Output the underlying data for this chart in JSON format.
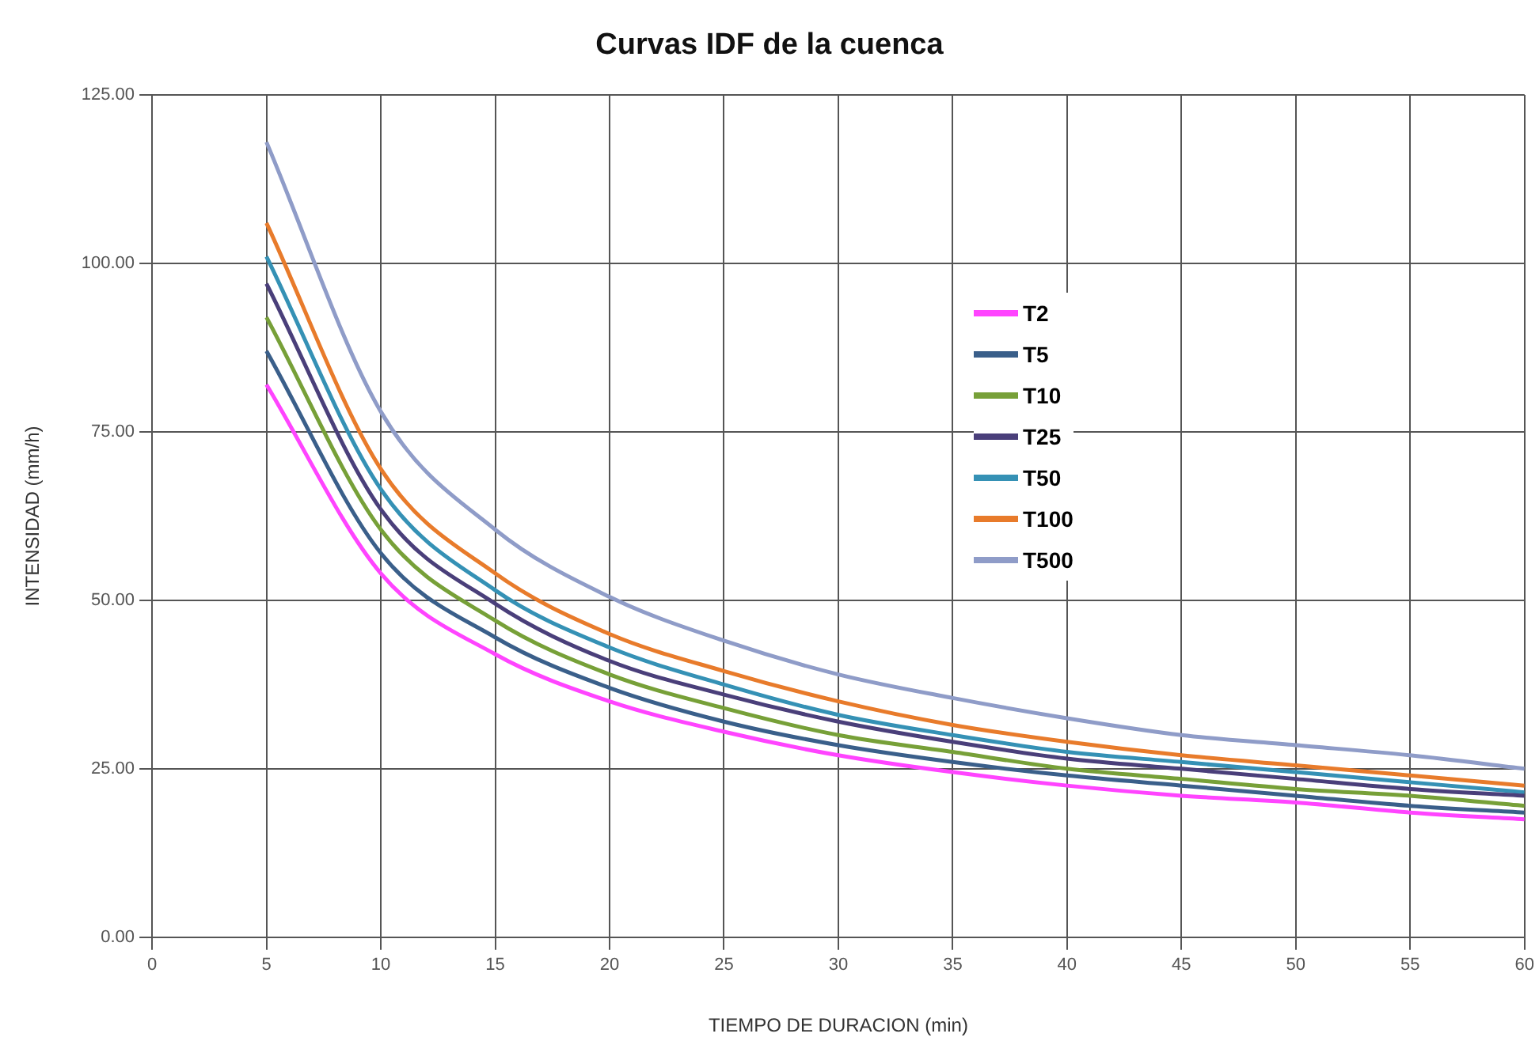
{
  "chart_data": {
    "type": "line",
    "title": "Curvas IDF de la cuenca",
    "xlabel": "TIEMPO DE DURACION (min)",
    "ylabel": "INTENSIDAD (mm/h)",
    "x": [
      5,
      10,
      15,
      20,
      25,
      30,
      35,
      40,
      45,
      50,
      55,
      60
    ],
    "xlim": [
      0,
      60
    ],
    "xticks": [
      0,
      5,
      10,
      15,
      20,
      25,
      30,
      35,
      40,
      45,
      50,
      55,
      60
    ],
    "ylim": [
      0,
      125
    ],
    "yticks": [
      {
        "value": 0,
        "label": "0.00"
      },
      {
        "value": 25,
        "label": "25.00"
      },
      {
        "value": 50,
        "label": "50.00"
      },
      {
        "value": 75,
        "label": "75.00"
      },
      {
        "value": 100,
        "label": "100.00"
      },
      {
        "value": 125,
        "label": "125.00"
      }
    ],
    "grid": true,
    "legend": "right",
    "marker": "none",
    "line_style": "solid",
    "series": [
      {
        "name": "T2",
        "color": "#ff44ff",
        "values": [
          82,
          54,
          42,
          35,
          30.5,
          27,
          24.5,
          22.5,
          21,
          20,
          18.5,
          17.5
        ]
      },
      {
        "name": "T5",
        "color": "#3a5f8a",
        "values": [
          87,
          57,
          44.5,
          37,
          32,
          28.5,
          26,
          24,
          22.5,
          21,
          19.5,
          18.5
        ]
      },
      {
        "name": "T10",
        "color": "#77a038",
        "values": [
          92,
          60.5,
          47,
          39,
          34,
          30,
          27.5,
          25,
          23.5,
          22,
          21,
          19.5
        ]
      },
      {
        "name": "T25",
        "color": "#4a3f7a",
        "values": [
          97,
          63.5,
          49.5,
          41,
          36,
          32,
          29,
          26.5,
          25,
          23.5,
          22,
          21
        ]
      },
      {
        "name": "T50",
        "color": "#3591b5",
        "values": [
          101,
          66.5,
          51.5,
          43,
          37.5,
          33,
          30,
          27.5,
          26,
          24.5,
          23,
          21.5
        ]
      },
      {
        "name": "T100",
        "color": "#e87b2b",
        "values": [
          106,
          69.5,
          54,
          45,
          39.5,
          35,
          31.5,
          29,
          27,
          25.5,
          24,
          22.5
        ]
      },
      {
        "name": "T500",
        "color": "#8f9cc8",
        "values": [
          118,
          78,
          60.5,
          50.5,
          44,
          39,
          35.5,
          32.5,
          30,
          28.5,
          27,
          25
        ]
      }
    ]
  }
}
